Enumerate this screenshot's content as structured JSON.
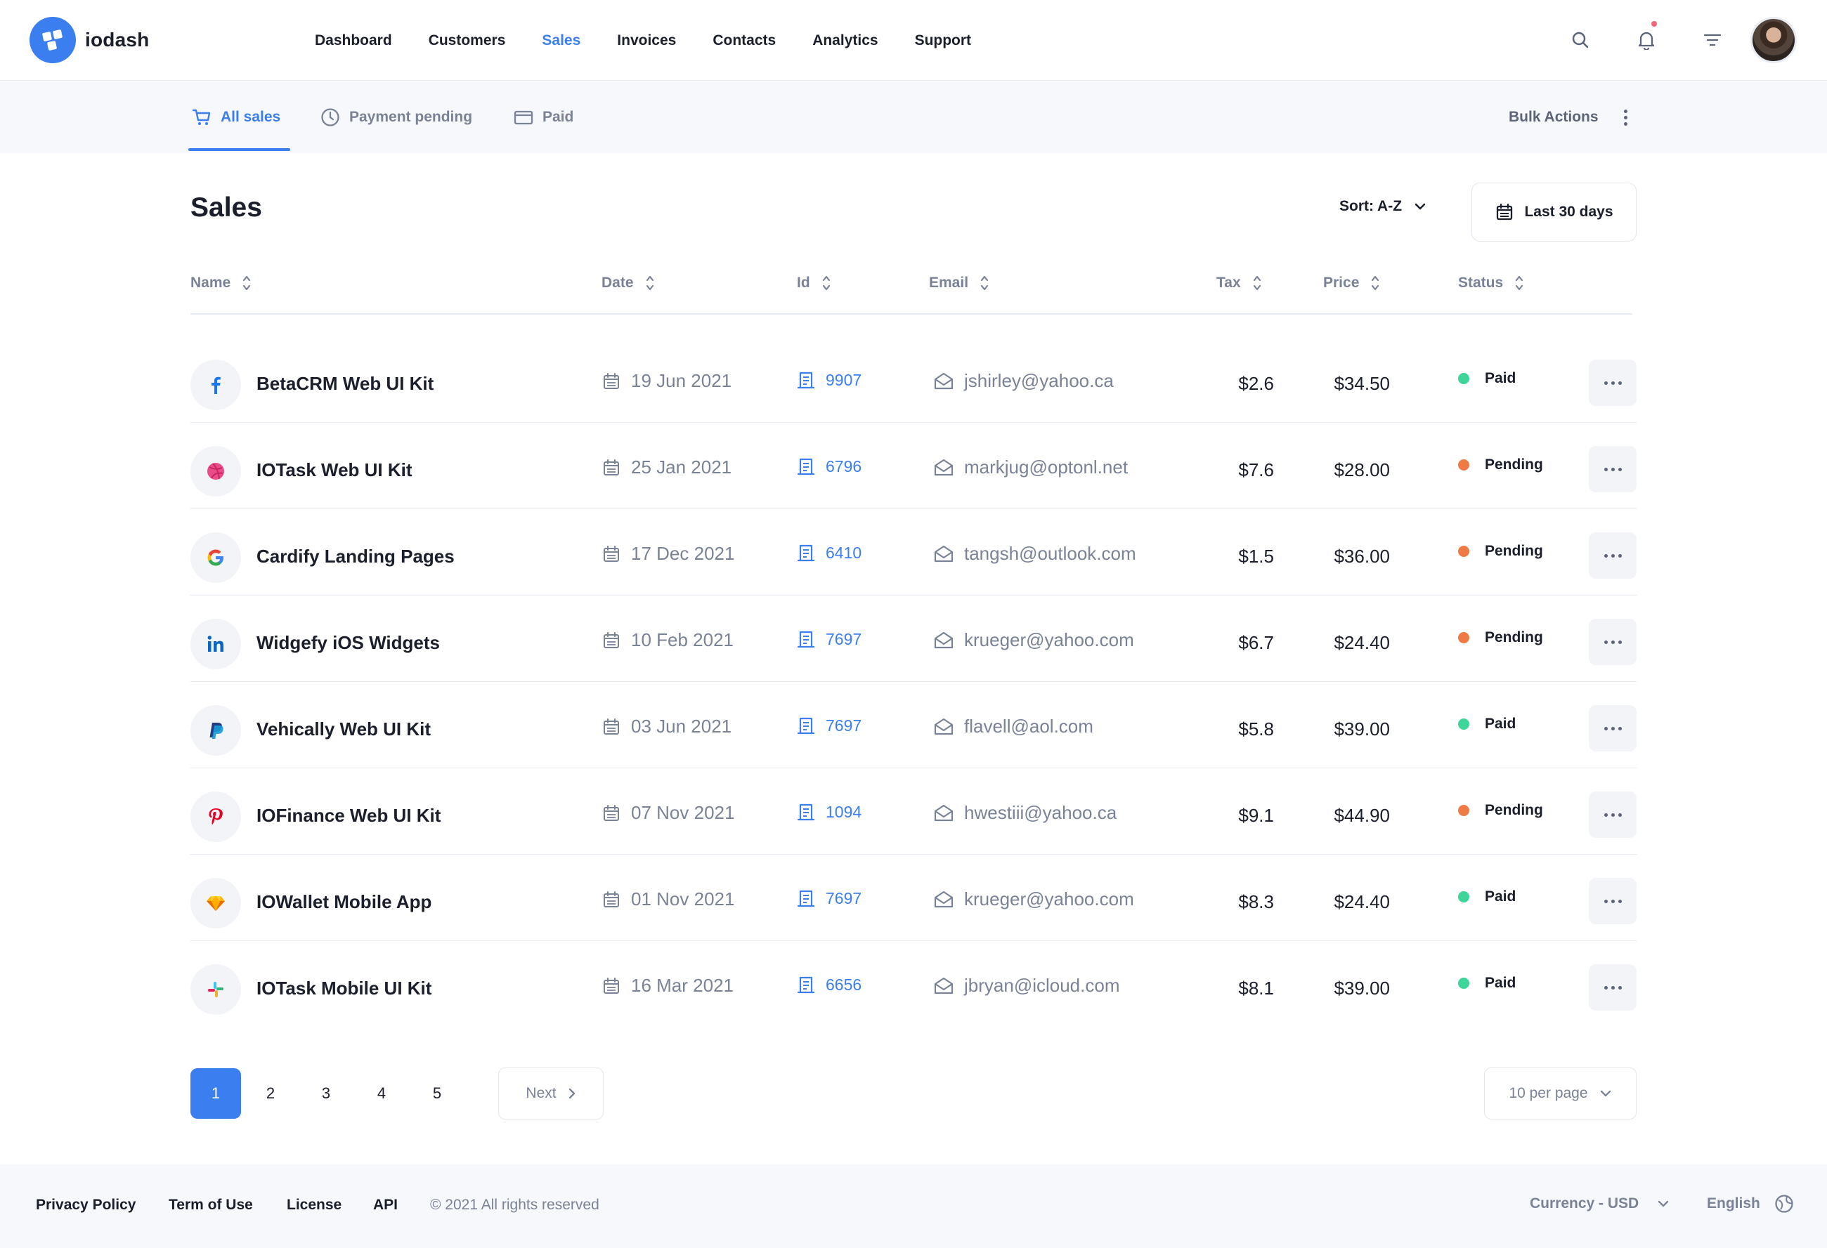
{
  "app": {
    "name": "iodash"
  },
  "nav": {
    "items": [
      "Dashboard",
      "Customers",
      "Sales",
      "Invoices",
      "Contacts",
      "Analytics",
      "Support"
    ],
    "active": "Sales"
  },
  "header_icons": [
    "search-icon",
    "bell-icon",
    "filter-icon"
  ],
  "subtabs": {
    "items": [
      {
        "label": "All sales",
        "icon": "cart-icon",
        "active": true
      },
      {
        "label": "Payment pending",
        "icon": "clock-icon",
        "active": false
      },
      {
        "label": "Paid",
        "icon": "card-icon",
        "active": false
      }
    ],
    "bulk_actions": "Bulk Actions"
  },
  "page": {
    "title": "Sales",
    "sort_label": "Sort: A-Z",
    "date_range": "Last 30 days"
  },
  "table": {
    "columns": [
      "Name",
      "Date",
      "Id",
      "Email",
      "Tax",
      "Price",
      "Status"
    ],
    "rows": [
      {
        "brand": "facebook",
        "name": "BetaCRM Web UI Kit",
        "date": "19 Jun 2021",
        "id": "9907",
        "email": "jshirley@yahoo.ca",
        "tax": "$2.6",
        "price": "$34.50",
        "status": "Paid"
      },
      {
        "brand": "dribbble",
        "name": "IOTask Web UI Kit",
        "date": "25 Jan 2021",
        "id": "6796",
        "email": "markjug@optonl.net",
        "tax": "$7.6",
        "price": "$28.00",
        "status": "Pending"
      },
      {
        "brand": "google",
        "name": "Cardify Landing Pages",
        "date": "17 Dec 2021",
        "id": "6410",
        "email": "tangsh@outlook.com",
        "tax": "$1.5",
        "price": "$36.00",
        "status": "Pending"
      },
      {
        "brand": "linkedin",
        "name": "Widgefy iOS Widgets",
        "date": "10 Feb 2021",
        "id": "7697",
        "email": "krueger@yahoo.com",
        "tax": "$6.7",
        "price": "$24.40",
        "status": "Pending"
      },
      {
        "brand": "paypal",
        "name": "Vehically Web UI Kit",
        "date": "03 Jun 2021",
        "id": "7697",
        "email": "flavell@aol.com",
        "tax": "$5.8",
        "price": "$39.00",
        "status": "Paid"
      },
      {
        "brand": "pinterest",
        "name": "IOFinance Web UI Kit",
        "date": "07 Nov 2021",
        "id": "1094",
        "email": "hwestiii@yahoo.ca",
        "tax": "$9.1",
        "price": "$44.90",
        "status": "Pending"
      },
      {
        "brand": "sketch",
        "name": "IOWallet Mobile App",
        "date": "01 Nov 2021",
        "id": "7697",
        "email": "krueger@yahoo.com",
        "tax": "$8.3",
        "price": "$24.40",
        "status": "Paid"
      },
      {
        "brand": "slack",
        "name": "IOTask Mobile UI Kit",
        "date": "16 Mar 2021",
        "id": "6656",
        "email": "jbryan@icloud.com",
        "tax": "$8.1",
        "price": "$39.00",
        "status": "Paid"
      }
    ]
  },
  "status_colors": {
    "Paid": "#3dd598",
    "Pending": "#f07a45"
  },
  "pagination": {
    "pages": [
      "1",
      "2",
      "3",
      "4",
      "5"
    ],
    "current": "1",
    "next_label": "Next",
    "per_page": "10 per page"
  },
  "footer": {
    "links": [
      "Privacy Policy",
      "Term of Use",
      "License",
      "API"
    ],
    "copyright": "© 2021 All rights reserved",
    "currency": "Currency - USD",
    "language": "English"
  },
  "colors": {
    "accent": "#3b7ef0",
    "text": "#1b1f2b",
    "muted": "#7a8296"
  }
}
